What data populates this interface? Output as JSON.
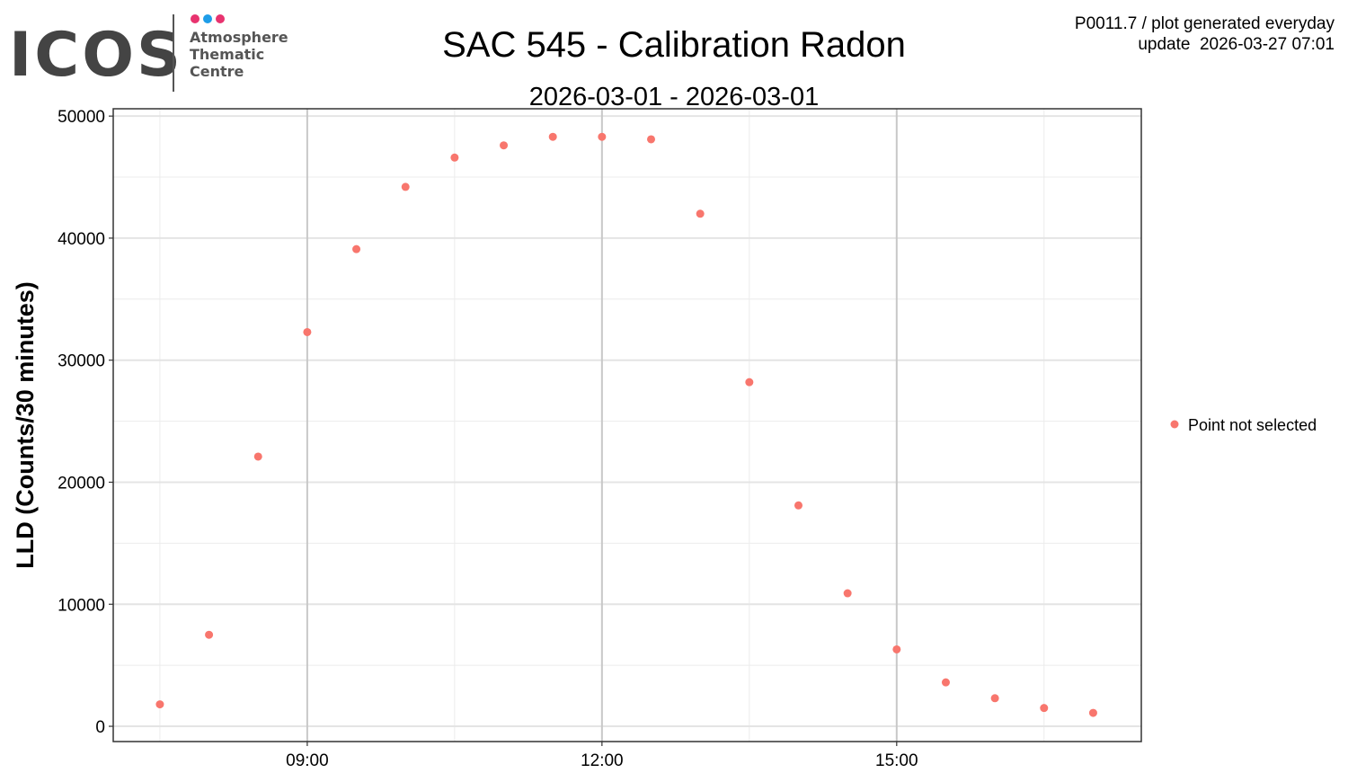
{
  "logo": {
    "word": "ICOS",
    "lines": [
      "Atmosphere",
      "Thematic",
      "Centre"
    ],
    "dot_colors": [
      "#e8336f",
      "#1e9de8",
      "#e8336f"
    ]
  },
  "header": {
    "info_line1": "P0011.7 / plot generated everyday",
    "info_line2": "update  2026-03-27 07:01"
  },
  "chart_data": {
    "type": "scatter",
    "title": "SAC 545 - Calibration Radon",
    "subtitle": "2026-03-01 - 2026-03-01",
    "xlabel": "",
    "ylabel": "LLD (Counts/30 minutes)",
    "x_ticks": [
      "09:00",
      "12:00",
      "15:00"
    ],
    "x_tick_hours": [
      9,
      12,
      15
    ],
    "xlim_hours": [
      7.025,
      17.49
    ],
    "y_ticks": [
      0,
      10000,
      20000,
      30000,
      40000,
      50000
    ],
    "y_tick_labels": [
      "0",
      "10000",
      "20000",
      "30000",
      "40000",
      "50000"
    ],
    "ylim": [
      -1250,
      50600
    ],
    "grid": true,
    "legend": {
      "position": "right",
      "entries": [
        {
          "label": "Point not selected",
          "color": "#f8766d"
        }
      ]
    },
    "series": [
      {
        "name": "Point not selected",
        "color": "#f8766d",
        "x": [
          "07:30",
          "08:00",
          "08:30",
          "09:00",
          "09:30",
          "10:00",
          "10:30",
          "11:00",
          "11:30",
          "12:00",
          "12:30",
          "13:00",
          "13:30",
          "14:00",
          "14:30",
          "15:00",
          "15:30",
          "16:00",
          "16:30",
          "17:00"
        ],
        "values": [
          1800,
          7500,
          22100,
          32300,
          39100,
          44200,
          46600,
          47600,
          48300,
          48300,
          48100,
          42000,
          28200,
          18100,
          10900,
          6300,
          3600,
          2300,
          1500,
          1100
        ]
      }
    ]
  }
}
